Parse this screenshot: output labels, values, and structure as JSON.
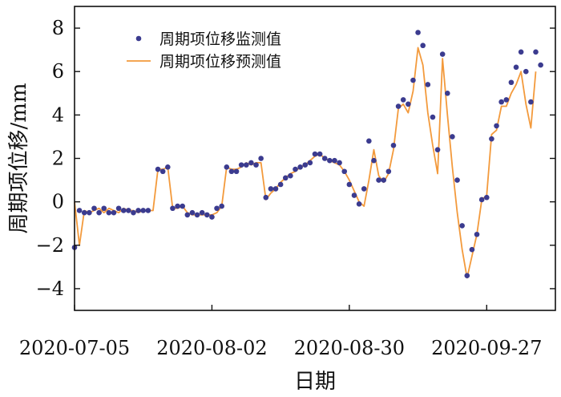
{
  "chart_data": {
    "type": "scatter",
    "xlabel": "日期",
    "ylabel": "周期项位移/mm",
    "x_tick_labels": [
      "2020-07-05",
      "2020-08-02",
      "2020-08-30",
      "2020-09-27"
    ],
    "x_tick_dates": [
      "2020-07-05",
      "2020-08-02",
      "2020-08-30",
      "2020-09-27"
    ],
    "xlim": [
      "2020-07-05",
      "2020-10-11"
    ],
    "ylim": [
      -5,
      9
    ],
    "y_ticks": [
      -4,
      -2,
      0,
      2,
      4,
      6,
      8
    ],
    "grid": false,
    "legend_position": "top-left",
    "legend": [
      "周期项位移监测值",
      "周期项位移预测值"
    ],
    "series": [
      {
        "name": "周期项位移监测值",
        "kind": "scatter",
        "color": "#3b3b8f",
        "points": [
          [
            "2020-07-05",
            -2.1
          ],
          [
            "2020-07-06",
            -0.4
          ],
          [
            "2020-07-07",
            -0.5
          ],
          [
            "2020-07-08",
            -0.5
          ],
          [
            "2020-07-09",
            -0.3
          ],
          [
            "2020-07-10",
            -0.5
          ],
          [
            "2020-07-11",
            -0.3
          ],
          [
            "2020-07-12",
            -0.5
          ],
          [
            "2020-07-13",
            -0.5
          ],
          [
            "2020-07-14",
            -0.3
          ],
          [
            "2020-07-15",
            -0.4
          ],
          [
            "2020-07-16",
            -0.4
          ],
          [
            "2020-07-17",
            -0.5
          ],
          [
            "2020-07-18",
            -0.4
          ],
          [
            "2020-07-19",
            -0.4
          ],
          [
            "2020-07-20",
            -0.4
          ],
          [
            "2020-07-22",
            1.5
          ],
          [
            "2020-07-23",
            1.4
          ],
          [
            "2020-07-24",
            1.6
          ],
          [
            "2020-07-25",
            -0.3
          ],
          [
            "2020-07-26",
            -0.2
          ],
          [
            "2020-07-27",
            -0.2
          ],
          [
            "2020-07-28",
            -0.6
          ],
          [
            "2020-07-29",
            -0.5
          ],
          [
            "2020-07-30",
            -0.6
          ],
          [
            "2020-07-31",
            -0.5
          ],
          [
            "2020-08-01",
            -0.6
          ],
          [
            "2020-08-02",
            -0.7
          ],
          [
            "2020-08-03",
            -0.3
          ],
          [
            "2020-08-04",
            -0.2
          ],
          [
            "2020-08-05",
            1.6
          ],
          [
            "2020-08-06",
            1.4
          ],
          [
            "2020-08-07",
            1.4
          ],
          [
            "2020-08-08",
            1.7
          ],
          [
            "2020-08-09",
            1.7
          ],
          [
            "2020-08-10",
            1.8
          ],
          [
            "2020-08-11",
            1.7
          ],
          [
            "2020-08-12",
            2.0
          ],
          [
            "2020-08-13",
            0.2
          ],
          [
            "2020-08-14",
            0.6
          ],
          [
            "2020-08-15",
            0.6
          ],
          [
            "2020-08-16",
            0.8
          ],
          [
            "2020-08-17",
            1.1
          ],
          [
            "2020-08-18",
            1.2
          ],
          [
            "2020-08-19",
            1.5
          ],
          [
            "2020-08-20",
            1.6
          ],
          [
            "2020-08-21",
            1.7
          ],
          [
            "2020-08-22",
            1.8
          ],
          [
            "2020-08-23",
            2.2
          ],
          [
            "2020-08-24",
            2.2
          ],
          [
            "2020-08-25",
            2.0
          ],
          [
            "2020-08-26",
            1.9
          ],
          [
            "2020-08-27",
            1.9
          ],
          [
            "2020-08-28",
            1.8
          ],
          [
            "2020-08-29",
            1.4
          ],
          [
            "2020-08-30",
            0.8
          ],
          [
            "2020-08-31",
            0.3
          ],
          [
            "2020-09-01",
            -0.1
          ],
          [
            "2020-09-02",
            0.6
          ],
          [
            "2020-09-03",
            2.8
          ],
          [
            "2020-09-04",
            1.9
          ],
          [
            "2020-09-05",
            1.0
          ],
          [
            "2020-09-06",
            1.0
          ],
          [
            "2020-09-07",
            1.4
          ],
          [
            "2020-09-08",
            2.6
          ],
          [
            "2020-09-09",
            4.4
          ],
          [
            "2020-09-10",
            4.7
          ],
          [
            "2020-09-11",
            4.5
          ],
          [
            "2020-09-12",
            5.6
          ],
          [
            "2020-09-13",
            7.8
          ],
          [
            "2020-09-14",
            7.2
          ],
          [
            "2020-09-15",
            5.4
          ],
          [
            "2020-09-16",
            3.9
          ],
          [
            "2020-09-17",
            2.4
          ],
          [
            "2020-09-18",
            6.8
          ],
          [
            "2020-09-19",
            5.0
          ],
          [
            "2020-09-20",
            3.0
          ],
          [
            "2020-09-21",
            1.0
          ],
          [
            "2020-09-22",
            -1.1
          ],
          [
            "2020-09-23",
            -3.4
          ],
          [
            "2020-09-24",
            -2.2
          ],
          [
            "2020-09-25",
            -1.5
          ],
          [
            "2020-09-26",
            0.1
          ],
          [
            "2020-09-27",
            0.2
          ],
          [
            "2020-09-28",
            2.9
          ],
          [
            "2020-09-29",
            3.5
          ],
          [
            "2020-09-30",
            4.6
          ],
          [
            "2020-10-01",
            4.7
          ],
          [
            "2020-10-02",
            5.5
          ],
          [
            "2020-10-03",
            6.2
          ],
          [
            "2020-10-04",
            6.9
          ],
          [
            "2020-10-05",
            6.0
          ],
          [
            "2020-10-06",
            4.6
          ],
          [
            "2020-10-07",
            6.9
          ],
          [
            "2020-10-08",
            6.3
          ]
        ]
      },
      {
        "name": "周期项位移预测值",
        "kind": "line",
        "color": "#f39a3c",
        "points": [
          [
            "2020-07-05",
            0.0
          ],
          [
            "2020-07-06",
            -2.0
          ],
          [
            "2020-07-07",
            -0.4
          ],
          [
            "2020-07-08",
            -0.5
          ],
          [
            "2020-07-09",
            -0.4
          ],
          [
            "2020-07-10",
            -0.3
          ],
          [
            "2020-07-11",
            -0.5
          ],
          [
            "2020-07-12",
            -0.3
          ],
          [
            "2020-07-13",
            -0.4
          ],
          [
            "2020-07-14",
            -0.5
          ],
          [
            "2020-07-15",
            -0.3
          ],
          [
            "2020-07-16",
            -0.4
          ],
          [
            "2020-07-17",
            -0.4
          ],
          [
            "2020-07-18",
            -0.5
          ],
          [
            "2020-07-19",
            -0.4
          ],
          [
            "2020-07-20",
            -0.4
          ],
          [
            "2020-07-21",
            -0.4
          ],
          [
            "2020-07-22",
            1.5
          ],
          [
            "2020-07-23",
            1.5
          ],
          [
            "2020-07-24",
            1.6
          ],
          [
            "2020-07-25",
            -0.3
          ],
          [
            "2020-07-26",
            -0.3
          ],
          [
            "2020-07-27",
            -0.2
          ],
          [
            "2020-07-28",
            -0.5
          ],
          [
            "2020-07-29",
            -0.6
          ],
          [
            "2020-07-30",
            -0.6
          ],
          [
            "2020-07-31",
            -0.6
          ],
          [
            "2020-08-01",
            -0.6
          ],
          [
            "2020-08-02",
            -0.6
          ],
          [
            "2020-08-03",
            -0.5
          ],
          [
            "2020-08-04",
            -0.2
          ],
          [
            "2020-08-05",
            1.6
          ],
          [
            "2020-08-06",
            1.5
          ],
          [
            "2020-08-07",
            1.5
          ],
          [
            "2020-08-08",
            1.6
          ],
          [
            "2020-08-09",
            1.8
          ],
          [
            "2020-08-10",
            1.7
          ],
          [
            "2020-08-11",
            1.8
          ],
          [
            "2020-08-12",
            1.8
          ],
          [
            "2020-08-13",
            0.1
          ],
          [
            "2020-08-14",
            0.4
          ],
          [
            "2020-08-15",
            0.6
          ],
          [
            "2020-08-16",
            0.9
          ],
          [
            "2020-08-17",
            1.1
          ],
          [
            "2020-08-18",
            1.3
          ],
          [
            "2020-08-19",
            1.4
          ],
          [
            "2020-08-20",
            1.6
          ],
          [
            "2020-08-21",
            1.7
          ],
          [
            "2020-08-22",
            1.9
          ],
          [
            "2020-08-23",
            2.1
          ],
          [
            "2020-08-24",
            2.2
          ],
          [
            "2020-08-25",
            2.0
          ],
          [
            "2020-08-26",
            1.9
          ],
          [
            "2020-08-27",
            1.8
          ],
          [
            "2020-08-28",
            1.7
          ],
          [
            "2020-08-29",
            1.4
          ],
          [
            "2020-08-30",
            1.0
          ],
          [
            "2020-08-31",
            0.5
          ],
          [
            "2020-09-01",
            0.0
          ],
          [
            "2020-09-02",
            -0.2
          ],
          [
            "2020-09-03",
            1.0
          ],
          [
            "2020-09-04",
            2.4
          ],
          [
            "2020-09-05",
            1.2
          ],
          [
            "2020-09-06",
            0.9
          ],
          [
            "2020-09-07",
            1.3
          ],
          [
            "2020-09-08",
            2.4
          ],
          [
            "2020-09-09",
            4.3
          ],
          [
            "2020-09-10",
            4.5
          ],
          [
            "2020-09-11",
            4.1
          ],
          [
            "2020-09-12",
            5.1
          ],
          [
            "2020-09-13",
            7.1
          ],
          [
            "2020-09-14",
            6.3
          ],
          [
            "2020-09-15",
            4.1
          ],
          [
            "2020-09-16",
            2.6
          ],
          [
            "2020-09-17",
            1.3
          ],
          [
            "2020-09-18",
            6.6
          ],
          [
            "2020-09-19",
            4.0
          ],
          [
            "2020-09-20",
            1.6
          ],
          [
            "2020-09-21",
            -0.5
          ],
          [
            "2020-09-22",
            -2.2
          ],
          [
            "2020-09-23",
            -3.5
          ],
          [
            "2020-09-24",
            -2.5
          ],
          [
            "2020-09-25",
            -1.5
          ],
          [
            "2020-09-26",
            0.1
          ],
          [
            "2020-09-27",
            0.3
          ],
          [
            "2020-09-28",
            3.1
          ],
          [
            "2020-09-29",
            3.3
          ],
          [
            "2020-09-30",
            4.4
          ],
          [
            "2020-10-01",
            4.4
          ],
          [
            "2020-10-02",
            5.0
          ],
          [
            "2020-10-03",
            5.4
          ],
          [
            "2020-10-04",
            6.0
          ],
          [
            "2020-10-05",
            4.5
          ],
          [
            "2020-10-06",
            3.4
          ],
          [
            "2020-10-07",
            6.0
          ]
        ]
      }
    ]
  }
}
